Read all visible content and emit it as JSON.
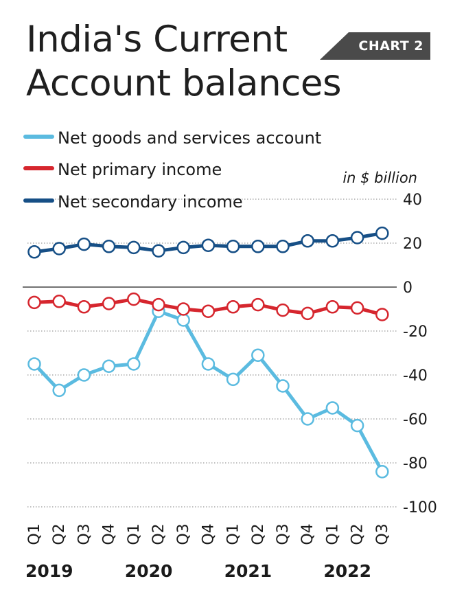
{
  "header": {
    "title_line1": "India's Current",
    "title_line2": "Account balances",
    "badge": "CHART 2"
  },
  "colors": {
    "goods": "#5bbbe0",
    "primary": "#d6262e",
    "secondary": "#164f86",
    "grid": "#9a9a9a",
    "zero_line": "#444444"
  },
  "chart_data": {
    "type": "line",
    "unit_label": "in $ billion",
    "x": [
      "Q1",
      "Q2",
      "Q3",
      "Q4",
      "Q1",
      "Q2",
      "Q3",
      "Q4",
      "Q1",
      "Q2",
      "Q3",
      "Q4",
      "Q1",
      "Q2",
      "Q3"
    ],
    "years": [
      {
        "label": "2019",
        "start_index": 0
      },
      {
        "label": "2020",
        "start_index": 4
      },
      {
        "label": "2021",
        "start_index": 8
      },
      {
        "label": "2022",
        "start_index": 12
      }
    ],
    "ylim": [
      -100,
      40
    ],
    "yticks": [
      40,
      20,
      0,
      -20,
      -40,
      -60,
      -80,
      -100
    ],
    "ytick_labels": [
      "40",
      "20",
      "0",
      "-20",
      "-40",
      "-60",
      "-80",
      "-100"
    ],
    "grid": "dotted horizontal",
    "legend_position": "top-left",
    "series": [
      {
        "name": "Net goods and services account",
        "color_key": "goods",
        "values": [
          -35,
          -47,
          -40,
          -36,
          -35,
          -11,
          -15,
          -35,
          -42,
          -31,
          -45,
          -60,
          -55,
          -63,
          -84
        ]
      },
      {
        "name": "Net primary income",
        "color_key": "primary",
        "values": [
          -7,
          -6.5,
          -9,
          -7.5,
          -5.5,
          -8,
          -10,
          -11,
          -9,
          -8,
          -10.5,
          -12,
          -9,
          -9.5,
          -12.5
        ]
      },
      {
        "name": "Net secondary income",
        "color_key": "secondary",
        "values": [
          16,
          17.5,
          19.5,
          18.5,
          18,
          16.5,
          18,
          19,
          18.5,
          18.5,
          18.5,
          21,
          21,
          22.5,
          24.5
        ]
      }
    ]
  }
}
